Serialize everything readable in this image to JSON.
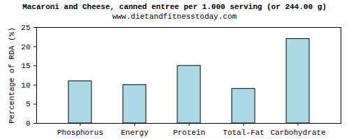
{
  "chart_data": {
    "type": "bar",
    "title": "Macaroni and Cheese, canned entree per 1.000 serving (or 244.00 g)",
    "subtitle": "www.dietandfitnesstoday.com",
    "y_label": "Percentage of RDA (%)",
    "categories": [
      "Phosphorus",
      "Energy",
      "Protein",
      "Total-Fat",
      "Carbohydrate"
    ],
    "values": [
      11,
      10,
      15,
      9,
      22
    ],
    "color": "#add8e6",
    "ylim": [
      0,
      25
    ],
    "yticks": [
      0,
      5,
      10,
      15,
      20,
      25
    ],
    "grid": false
  }
}
